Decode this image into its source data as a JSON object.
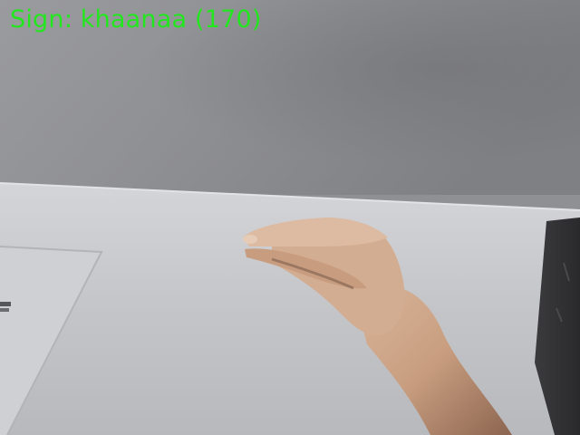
{
  "overlay": {
    "prefix": "Sign: ",
    "sign": "khaanaa",
    "count": "(170)",
    "color": "#22e61e"
  },
  "scene": {
    "wall_color": "#8e8f92",
    "table_color": "#c9cacd"
  }
}
